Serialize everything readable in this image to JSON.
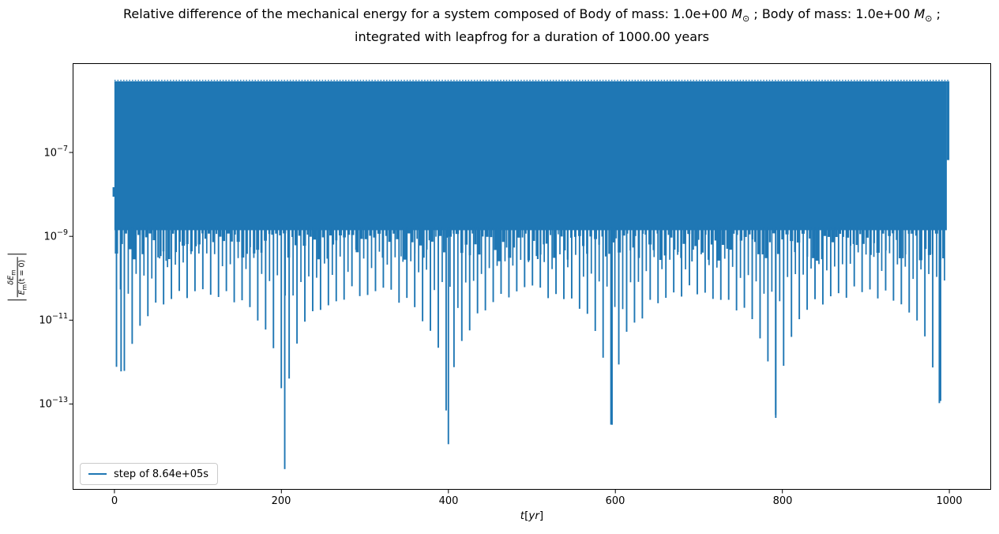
{
  "title": {
    "line1_pre": "Relative difference of the mechanical energy for a system composed of Body of mass: 1.0e+00 ",
    "mass_symbol": "M",
    "odot_symbol": "⊙",
    "line1_mid": " ; Body of mass: 1.0e+00 ",
    "mass_symbol2": "M",
    "odot_symbol2": "⊙",
    "line1_post": " ;",
    "line2": "integrated with leapfrog for a duration of 1000.00 years"
  },
  "axes": {
    "xticklabels": [
      "0",
      "200",
      "400",
      "600",
      "800",
      "1000"
    ],
    "yticklabels": [
      {
        "base": "10",
        "exp": "−7"
      },
      {
        "base": "10",
        "exp": "−9"
      },
      {
        "base": "10",
        "exp": "−11"
      },
      {
        "base": "10",
        "exp": "−13"
      }
    ],
    "xlabel_parts": {
      "t": "t",
      "open": "[",
      "yr": "yr",
      "close": "]"
    },
    "ylabel_parts": {
      "num_main": "δE",
      "num_sub": "m",
      "den_main": "E",
      "den_sub": "m",
      "den_tail": "(t = 0)"
    }
  },
  "legend": {
    "label": "step of 8.64e+05s",
    "line_color": "#1f77b4"
  },
  "chart_data": {
    "type": "line",
    "yscale": "log",
    "grid": false,
    "title": "Relative difference of the mechanical energy for a system composed of Body of mass: 1.0e+00 M_⊙ ; Body of mass: 1.0e+00 M_⊙ ; integrated with leapfrog for a duration of 1000.00 years",
    "xlabel": "t[yr]",
    "ylabel": "|δE_m / E_m(t=0)|",
    "xlim": [
      -50,
      1050
    ],
    "ylim": [
      9e-16,
      1.35e-05
    ],
    "xticks": [
      0,
      200,
      400,
      600,
      800,
      1000
    ],
    "yticks": [
      1e-07,
      1e-09,
      1e-11,
      1e-13
    ],
    "legend_location": "lower left",
    "series": [
      {
        "name": "step of 8.64e+05s",
        "color": "#1f77b4",
        "description": "Rapidly oscillating relative mechanical-energy error of a leapfrog two-body integration; renders as a dense band between the dense-band bottom and the constant upper envelope, with aliased downward spikes whose tips follow a scalloped lower envelope with deep minima roughly every 196 yr.",
        "t_start": 0,
        "t_end": 1000,
        "start_value": 1.05e-08,
        "end_value": 6.6e-08,
        "upper_envelope": 5e-06,
        "dense_band_bottom": 1.4e-09,
        "lower_envelope_peak": 5e-11,
        "envelope_period_yr": 196,
        "spike_spacing_yr": 9.4,
        "deep_minima": [
          {
            "t": 8,
            "value": 6e-13
          },
          {
            "t": 204,
            "value": 2.8e-15
          },
          {
            "t": 400,
            "value": 1.1e-14
          },
          {
            "t": 596,
            "value": 3.2e-14
          },
          {
            "t": 792,
            "value": 5.5e-14
          },
          {
            "t": 988,
            "value": 1.05e-13
          }
        ]
      }
    ]
  }
}
